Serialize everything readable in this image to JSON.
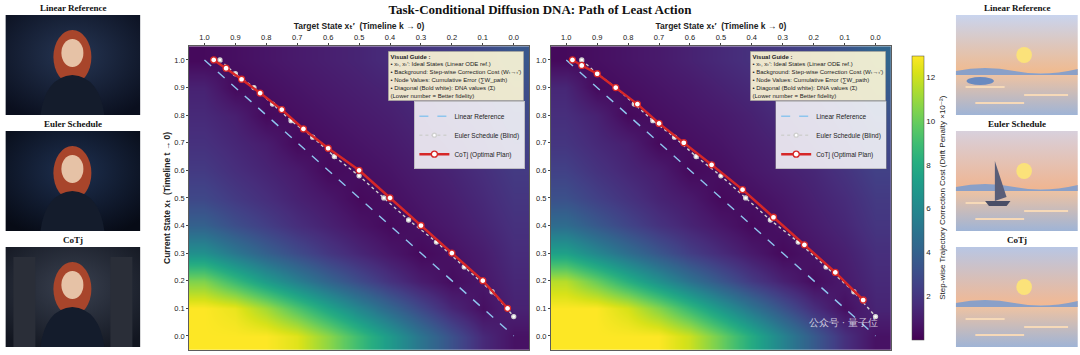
{
  "title": "Task-Conditional Diffusion DNA: Path of Least Action",
  "left_images": [
    "Linear Reference",
    "Euler Schedule",
    "CoTj"
  ],
  "right_images": [
    "Linear Reference",
    "Euler Schedule",
    "CoTj"
  ],
  "watermark": "公众号 · 量子位",
  "colorbar": {
    "title": "Step-wise Trajectory Correction Cost (Drift Penalty ×10⁻²)",
    "range": [
      0,
      13
    ],
    "ticks": [
      2,
      4,
      6,
      8,
      10,
      12
    ]
  },
  "chart_data": [
    {
      "type": "heatmap",
      "xlabel": "Target State xₜ′  (Timeline k → 0)",
      "ylabel": "Current State xₜ  (Timeline t → 0)",
      "xlim": [
        1.05,
        -0.05
      ],
      "ylim": [
        -0.05,
        1.05
      ],
      "xticks": [
        {
          "value": 1,
          "label": "1.0"
        },
        0.9,
        0.8,
        0.7,
        0.6,
        0.5,
        0.4,
        0.3,
        0.2,
        0.1,
        {
          "value": 0,
          "label": "0.0"
        }
      ],
      "yticks": [
        {
          "value": 1,
          "label": "1.0"
        },
        0.9,
        0.8,
        0.7,
        0.6,
        0.5,
        0.4,
        0.3,
        0.2,
        0.1,
        {
          "value": 0,
          "label": "0.0"
        }
      ],
      "grid": true,
      "legend": "upper right",
      "annotations": [
        "Visual Guide :",
        "• xₜ, xₜ′: Ideal States (Linear ODE ref.)",
        "• Background: Step-wise Correction Cost (Wₜ→ₜ′)",
        "• Node Values: Cumulative Error (∑W_path)",
        "• Diagonal (Bold white): DNA values (Σ)",
        "(Lower number = Better fidelity)"
      ],
      "x": [
        1,
        0.9,
        0.8,
        0.7,
        0.6,
        0.5,
        0.4,
        0.3,
        0.2,
        0.1,
        0
      ],
      "y": [
        1,
        0.9,
        0.8,
        0.7,
        0.6,
        0.5,
        0.4,
        0.3,
        0.2,
        0.1,
        0
      ],
      "z": [
        [
          0.3,
          0.5,
          0.7,
          0.9,
          1.1,
          1.3,
          1.6,
          1.9,
          2.3,
          2.8,
          3.5
        ],
        [
          1.2,
          0.3,
          0.5,
          0.7,
          0.9,
          1.1,
          1.3,
          1.6,
          2.0,
          2.5,
          3.1
        ],
        [
          1.5,
          1.1,
          0.3,
          0.5,
          0.7,
          0.9,
          1.1,
          1.4,
          1.8,
          2.2,
          2.8
        ],
        [
          1.8,
          1.4,
          1.0,
          0.3,
          0.5,
          0.7,
          0.9,
          1.2,
          1.5,
          1.9,
          2.5
        ],
        [
          2.2,
          1.7,
          1.3,
          0.9,
          0.3,
          0.5,
          0.7,
          1.0,
          1.3,
          1.7,
          2.2
        ],
        [
          2.8,
          2.2,
          1.7,
          1.2,
          0.8,
          0.3,
          0.5,
          0.8,
          1.1,
          1.5,
          2.0
        ],
        [
          4.0,
          3.1,
          2.4,
          1.7,
          1.2,
          0.7,
          0.3,
          0.6,
          0.9,
          1.3,
          1.8
        ],
        [
          6.5,
          5.2,
          4.0,
          3.0,
          2.1,
          1.4,
          0.8,
          0.3,
          0.6,
          1.0,
          1.6
        ],
        [
          10.5,
          8.8,
          7.1,
          5.6,
          4.2,
          3.0,
          1.9,
          1.0,
          0.4,
          0.8,
          1.4
        ],
        [
          13.0,
          12.6,
          11.2,
          9.4,
          7.6,
          5.9,
          4.3,
          2.8,
          1.4,
          0.5,
          1.2
        ],
        [
          13.0,
          13.0,
          13.0,
          12.4,
          10.8,
          8.9,
          7.0,
          5.0,
          3.2,
          1.5,
          0.6
        ]
      ],
      "series": [
        {
          "name": "Linear Reference",
          "color": "#8ec5ee",
          "line_style": "dashed",
          "x": [
            1,
            0.9,
            0.8,
            0.7,
            0.6,
            0.5,
            0.4,
            0.3,
            0.2,
            0.1,
            0
          ],
          "y": [
            1,
            0.9,
            0.8,
            0.7,
            0.6,
            0.5,
            0.4,
            0.3,
            0.2,
            0.1,
            0
          ]
        },
        {
          "name": "Euler Schedule (Blind)",
          "color": "#d0d0d0",
          "line_style": "dotted",
          "marker": "circle",
          "x": [
            0.95,
            0.9,
            0.84,
            0.78,
            0.72,
            0.65,
            0.58,
            0.5,
            0.42,
            0.34,
            0.25,
            0.16,
            0.07,
            0
          ],
          "y": [
            1,
            0.95,
            0.9,
            0.84,
            0.78,
            0.72,
            0.65,
            0.58,
            0.5,
            0.42,
            0.34,
            0.25,
            0.16,
            0.07
          ]
        },
        {
          "name": "CoTj (Optimal Plan)",
          "color": "#d62728",
          "line_style": "solid",
          "marker": "circle",
          "x": [
            0.97,
            0.93,
            0.88,
            0.82,
            0.75,
            0.68,
            0.6,
            0.5,
            0.4,
            0.3,
            0.2,
            0.1,
            0.02
          ],
          "y": [
            1,
            0.97,
            0.93,
            0.88,
            0.82,
            0.75,
            0.68,
            0.6,
            0.5,
            0.4,
            0.3,
            0.2,
            0.1
          ]
        }
      ]
    },
    {
      "type": "heatmap",
      "xlabel": "Target State xₜ′  (Timeline k → 0)",
      "xlim": [
        1.05,
        -0.05
      ],
      "ylim": [
        -0.05,
        1.05
      ],
      "xticks": [
        {
          "value": 1,
          "label": "1.0"
        },
        0.9,
        0.8,
        0.7,
        0.6,
        0.5,
        0.4,
        0.3,
        0.2,
        0.1,
        {
          "value": 0,
          "label": "0.0"
        }
      ],
      "yticks": [
        {
          "value": 1,
          "label": "1.0"
        },
        0.9,
        0.8,
        0.7,
        0.6,
        0.5,
        0.4,
        0.3,
        0.2,
        0.1,
        {
          "value": 0,
          "label": "0.0"
        }
      ],
      "grid": true,
      "legend": "upper right",
      "annotations": [
        "Visual Guide :",
        "• xₜ, xₜ′: Ideal States (Linear ODE ref.)",
        "• Background: Step-wise Correction Cost (Wₜ→ₜ′)",
        "• Node Values: Cumulative Error (∑W_path)",
        "• Diagonal (Bold white): DNA values (Σ)",
        "(Lower number = Better fidelity)"
      ],
      "x": [
        1,
        0.9,
        0.8,
        0.7,
        0.6,
        0.5,
        0.4,
        0.3,
        0.2,
        0.1,
        0
      ],
      "y": [
        1,
        0.9,
        0.8,
        0.7,
        0.6,
        0.5,
        0.4,
        0.3,
        0.2,
        0.1,
        0
      ],
      "z": [
        [
          0.3,
          0.5,
          0.7,
          0.9,
          1.2,
          1.5,
          1.8,
          2.2,
          2.7,
          3.3,
          4.2
        ],
        [
          1.4,
          0.3,
          0.5,
          0.7,
          0.9,
          1.2,
          1.5,
          1.9,
          2.3,
          2.9,
          3.7
        ],
        [
          1.7,
          1.2,
          0.3,
          0.5,
          0.7,
          0.9,
          1.2,
          1.6,
          2.0,
          2.5,
          3.2
        ],
        [
          2.0,
          1.5,
          1.1,
          0.3,
          0.5,
          0.7,
          1.0,
          1.3,
          1.7,
          2.2,
          2.8
        ],
        [
          2.5,
          1.9,
          1.4,
          1.0,
          0.3,
          0.5,
          0.8,
          1.1,
          1.4,
          1.9,
          2.5
        ],
        [
          3.2,
          2.5,
          1.9,
          1.3,
          0.9,
          0.3,
          0.5,
          0.8,
          1.2,
          1.6,
          2.2
        ],
        [
          4.6,
          3.6,
          2.7,
          1.9,
          1.3,
          0.8,
          0.3,
          0.6,
          1.0,
          1.4,
          2.0
        ],
        [
          7.4,
          6.0,
          4.7,
          3.5,
          2.4,
          1.6,
          0.9,
          0.3,
          0.7,
          1.1,
          1.7
        ],
        [
          11.6,
          10.0,
          8.2,
          6.5,
          4.9,
          3.5,
          2.2,
          1.2,
          0.4,
          0.9,
          1.5
        ],
        [
          13.0,
          13.0,
          12.2,
          10.6,
          8.7,
          6.8,
          5.0,
          3.3,
          1.7,
          0.5,
          1.3
        ],
        [
          13.0,
          13.0,
          13.0,
          13.0,
          12.0,
          10.1,
          8.0,
          5.8,
          3.7,
          1.8,
          0.6
        ]
      ],
      "series": [
        {
          "name": "Linear Reference",
          "color": "#8ec5ee",
          "line_style": "dashed",
          "x": [
            1,
            0.9,
            0.8,
            0.7,
            0.6,
            0.5,
            0.4,
            0.3,
            0.2,
            0.1,
            0
          ],
          "y": [
            1,
            0.9,
            0.8,
            0.7,
            0.6,
            0.5,
            0.4,
            0.3,
            0.2,
            0.1,
            0
          ]
        },
        {
          "name": "Euler Schedule (Blind)",
          "color": "#d0d0d0",
          "line_style": "dotted",
          "marker": "circle",
          "x": [
            0.95,
            0.9,
            0.84,
            0.78,
            0.72,
            0.65,
            0.58,
            0.5,
            0.42,
            0.34,
            0.25,
            0.16,
            0.07,
            0
          ],
          "y": [
            1,
            0.95,
            0.9,
            0.84,
            0.78,
            0.72,
            0.65,
            0.58,
            0.5,
            0.42,
            0.34,
            0.25,
            0.16,
            0.07
          ]
        },
        {
          "name": "CoTj (Optimal Plan)",
          "color": "#d62728",
          "line_style": "solid",
          "marker": "circle",
          "x": [
            0.98,
            0.95,
            0.9,
            0.84,
            0.77,
            0.7,
            0.62,
            0.53,
            0.43,
            0.33,
            0.23,
            0.13,
            0.04
          ],
          "y": [
            1,
            0.98,
            0.95,
            0.9,
            0.84,
            0.77,
            0.7,
            0.62,
            0.53,
            0.43,
            0.33,
            0.23,
            0.13
          ]
        }
      ]
    }
  ]
}
